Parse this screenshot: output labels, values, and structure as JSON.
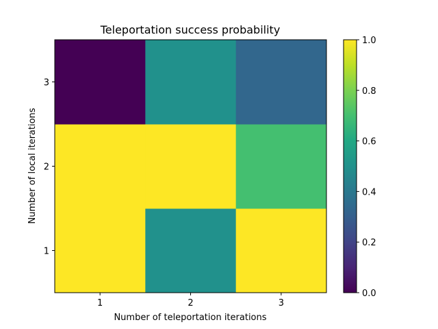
{
  "chart_data": {
    "type": "heatmap",
    "title": "Teleportation success probability",
    "xlabel": "Number of teleportation iterations",
    "ylabel": "Number of local iterations",
    "x": [
      1,
      2,
      3
    ],
    "y": [
      1,
      2,
      3
    ],
    "x_tick_labels": [
      "1",
      "2",
      "3"
    ],
    "y_tick_labels": [
      "1",
      "2",
      "3"
    ],
    "values": [
      [
        1.0,
        0.5,
        1.0
      ],
      [
        1.0,
        1.0,
        0.7
      ],
      [
        0.0,
        0.5,
        0.33
      ]
    ],
    "colormap": "viridis",
    "colorbar": {
      "range": [
        0.0,
        1.0
      ],
      "ticks": [
        0.0,
        0.2,
        0.4,
        0.6,
        0.8,
        1.0
      ],
      "tick_labels": [
        "0.0",
        "0.2",
        "0.4",
        "0.6",
        "0.8",
        "1.0"
      ]
    },
    "grid": false
  }
}
